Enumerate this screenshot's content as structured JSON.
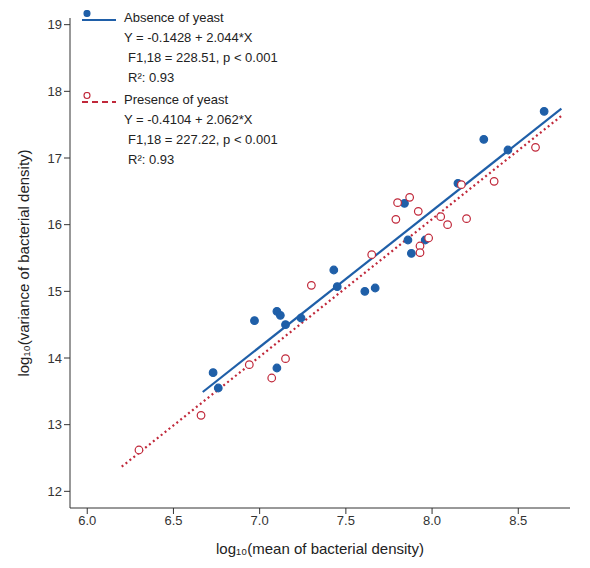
{
  "chart_data": {
    "type": "scatter",
    "x_label": "log₁₀(mean of bacterial density)",
    "y_label": "log₁₀(variance of bacterial density)",
    "xlim": [
      5.9,
      8.8
    ],
    "ylim": [
      11.75,
      19.1
    ],
    "xticks": [
      {
        "value": 6.0,
        "label": "6.0"
      },
      {
        "value": 6.5,
        "label": "6.5"
      },
      {
        "value": 7.0,
        "label": "7.0"
      },
      {
        "value": 7.5,
        "label": "7.5"
      },
      {
        "value": 8.0,
        "label": "8.0"
      },
      {
        "value": 8.5,
        "label": "8.5"
      }
    ],
    "yticks": [
      12,
      13,
      14,
      15,
      16,
      17,
      18,
      19
    ],
    "grid": false,
    "legend": "upper left",
    "series": [
      {
        "name": "Absence of yeast",
        "color": "#1f5fa8",
        "marker": "filled",
        "line_style": "solid",
        "legend_text": [
          "Y = -0.1428 + 2.044*X",
          "F1,18 = 228.51, p < 0.001",
          "R²: 0.93"
        ],
        "x": [
          6.73,
          6.76,
          6.97,
          7.1,
          7.12,
          7.1,
          7.15,
          7.24,
          7.43,
          7.45,
          7.61,
          7.67,
          7.84,
          7.86,
          7.88,
          7.96,
          8.15,
          8.3,
          8.44,
          8.65
        ],
        "values": [
          13.78,
          13.55,
          14.56,
          14.7,
          14.64,
          13.85,
          14.5,
          14.6,
          15.32,
          15.07,
          15.0,
          15.05,
          16.32,
          15.77,
          15.57,
          15.77,
          16.62,
          17.28,
          17.12,
          17.7
        ],
        "fit_x": [
          6.67,
          8.75
        ],
        "fit_values": [
          13.49,
          17.74
        ]
      },
      {
        "name": "Presence of yeast",
        "color": "#c0283a",
        "marker": "open",
        "line_style": "dotted",
        "legend_text": [
          "Y = -0.4104 + 2.062*X",
          "F1,18 = 227.22, p < 0.001",
          "R²: 0.93"
        ],
        "x": [
          6.3,
          6.66,
          6.94,
          7.07,
          7.15,
          7.3,
          7.65,
          7.79,
          7.8,
          7.87,
          7.92,
          7.93,
          7.93,
          7.98,
          8.05,
          8.09,
          8.17,
          8.2,
          8.36,
          8.6
        ],
        "values": [
          12.62,
          13.14,
          13.9,
          13.7,
          13.99,
          15.09,
          15.55,
          16.08,
          16.33,
          16.41,
          16.2,
          15.68,
          15.58,
          15.8,
          16.12,
          16.0,
          16.6,
          16.09,
          16.65,
          17.16
        ],
        "fit_x": [
          6.2,
          8.75
        ],
        "fit_values": [
          12.37,
          17.63
        ]
      }
    ]
  }
}
